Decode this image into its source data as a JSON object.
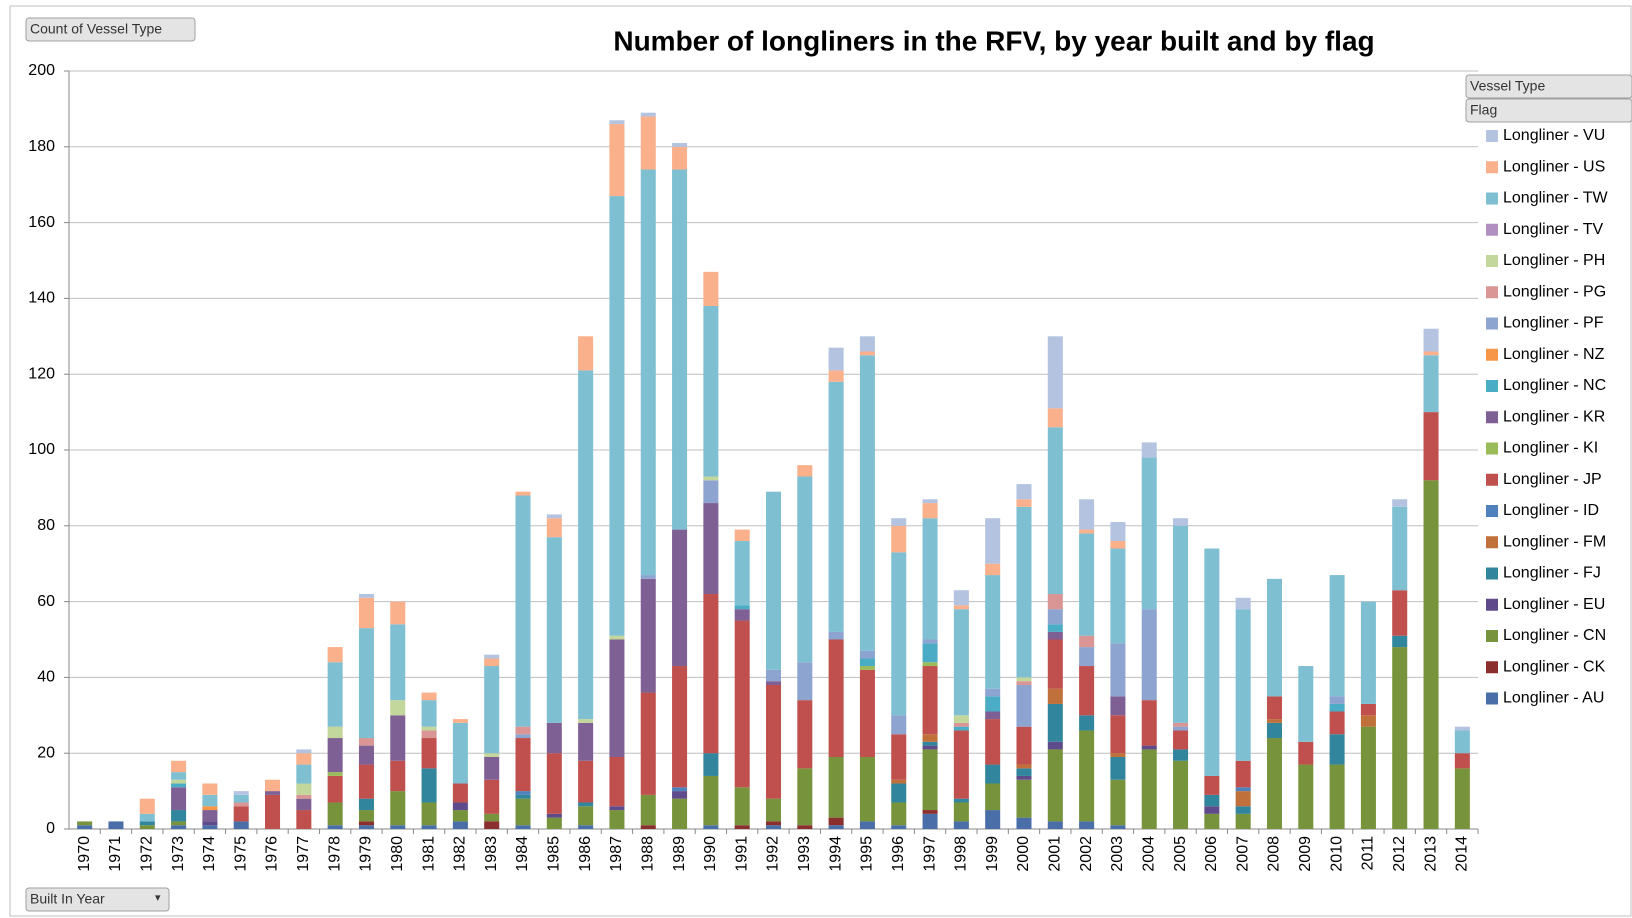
{
  "chart_data": {
    "type": "stacked_bar",
    "title": "Number of longliners in the RFV, by year built and by flag",
    "value_field": "Count of Vessel Type",
    "legend_fields": [
      "Vessel Type",
      "Flag"
    ],
    "axis_field": "Built In Year",
    "grid": true,
    "legend": "right",
    "ylim": [
      0,
      200
    ],
    "yticks": [
      0,
      20,
      40,
      60,
      80,
      100,
      120,
      140,
      160,
      180,
      200
    ],
    "categories": [
      "1970",
      "1971",
      "1972",
      "1973",
      "1974",
      "1975",
      "1976",
      "1977",
      "1978",
      "1979",
      "1980",
      "1981",
      "1982",
      "1983",
      "1984",
      "1985",
      "1986",
      "1987",
      "1988",
      "1989",
      "1990",
      "1991",
      "1992",
      "1993",
      "1994",
      "1995",
      "1996",
      "1997",
      "1998",
      "1999",
      "2000",
      "2001",
      "2002",
      "2003",
      "2004",
      "2005",
      "2006",
      "2007",
      "2008",
      "2009",
      "2010",
      "2011",
      "2012",
      "2013",
      "2014"
    ],
    "series": [
      {
        "name": "Longliner - AU",
        "color": "#4a6fa8",
        "values": [
          1,
          2,
          0,
          1,
          1,
          2,
          0,
          0,
          1,
          1,
          1,
          1,
          2,
          0,
          1,
          0,
          1,
          0,
          0,
          0,
          1,
          0,
          1,
          0,
          1,
          2,
          1,
          4,
          2,
          5,
          3,
          2,
          2,
          1,
          0,
          0,
          0,
          0,
          0,
          0,
          0,
          0,
          0,
          0,
          0
        ]
      },
      {
        "name": "Longliner - CK",
        "color": "#8b2e2e",
        "values": [
          0,
          0,
          0,
          0,
          0,
          0,
          0,
          0,
          0,
          1,
          0,
          0,
          0,
          2,
          0,
          0,
          0,
          0,
          1,
          0,
          0,
          1,
          1,
          1,
          2,
          0,
          0,
          1,
          0,
          0,
          0,
          0,
          0,
          0,
          0,
          0,
          0,
          0,
          0,
          0,
          0,
          0,
          0,
          0,
          0
        ]
      },
      {
        "name": "Longliner - CN",
        "color": "#77933c",
        "values": [
          1,
          0,
          1,
          1,
          0,
          0,
          0,
          0,
          6,
          3,
          9,
          6,
          3,
          2,
          7,
          3,
          5,
          5,
          8,
          8,
          13,
          10,
          6,
          15,
          16,
          17,
          6,
          16,
          5,
          7,
          10,
          19,
          24,
          12,
          21,
          18,
          4,
          4,
          24,
          17,
          17,
          27,
          48,
          92,
          16
        ]
      },
      {
        "name": "Longliner - EU",
        "color": "#5f4b8b",
        "values": [
          0,
          0,
          0,
          0,
          1,
          0,
          0,
          0,
          0,
          0,
          0,
          0,
          2,
          0,
          0,
          1,
          0,
          1,
          0,
          2,
          0,
          0,
          0,
          0,
          0,
          0,
          0,
          1,
          0,
          0,
          1,
          2,
          0,
          0,
          1,
          0,
          2,
          0,
          0,
          0,
          0,
          0,
          0,
          0,
          0
        ]
      },
      {
        "name": "Longliner - FJ",
        "color": "#31859c",
        "values": [
          0,
          0,
          1,
          3,
          0,
          0,
          0,
          0,
          0,
          3,
          0,
          9,
          0,
          0,
          1,
          0,
          1,
          0,
          0,
          0,
          6,
          0,
          0,
          0,
          0,
          0,
          5,
          1,
          1,
          5,
          2,
          10,
          4,
          6,
          0,
          3,
          3,
          2,
          4,
          0,
          8,
          0,
          3,
          0,
          0
        ]
      },
      {
        "name": "Longliner - FM",
        "color": "#c0703a",
        "values": [
          0,
          0,
          0,
          0,
          0,
          0,
          0,
          0,
          0,
          0,
          0,
          0,
          0,
          0,
          0,
          0,
          0,
          0,
          0,
          0,
          0,
          0,
          0,
          0,
          0,
          0,
          1,
          2,
          0,
          0,
          1,
          4,
          0,
          1,
          0,
          0,
          0,
          4,
          1,
          0,
          0,
          3,
          0,
          0,
          0
        ]
      },
      {
        "name": "Longliner - ID",
        "color": "#4f81bd",
        "values": [
          0,
          0,
          0,
          0,
          0,
          0,
          0,
          0,
          0,
          0,
          0,
          0,
          0,
          0,
          1,
          0,
          0,
          0,
          0,
          1,
          0,
          0,
          0,
          0,
          0,
          0,
          0,
          0,
          0,
          0,
          0,
          0,
          0,
          0,
          0,
          0,
          0,
          1,
          0,
          0,
          0,
          0,
          0,
          0,
          0
        ]
      },
      {
        "name": "Longliner - JP",
        "color": "#c0504d",
        "values": [
          0,
          0,
          0,
          0,
          0,
          4,
          9,
          5,
          7,
          9,
          8,
          8,
          5,
          9,
          14,
          16,
          11,
          13,
          27,
          32,
          42,
          44,
          30,
          18,
          31,
          23,
          12,
          18,
          18,
          12,
          10,
          13,
          13,
          10,
          12,
          5,
          5,
          7,
          6,
          6,
          6,
          3,
          12,
          18,
          4
        ]
      },
      {
        "name": "Longliner - KI",
        "color": "#9bbb59",
        "values": [
          0,
          0,
          0,
          0,
          0,
          0,
          0,
          0,
          1,
          0,
          0,
          0,
          0,
          0,
          0,
          0,
          0,
          0,
          0,
          0,
          0,
          0,
          0,
          0,
          0,
          1,
          0,
          1,
          0,
          0,
          0,
          0,
          0,
          0,
          0,
          0,
          0,
          0,
          0,
          0,
          0,
          0,
          0,
          0,
          0
        ]
      },
      {
        "name": "Longliner - KR",
        "color": "#7f6094",
        "values": [
          0,
          0,
          0,
          6,
          3,
          0,
          1,
          3,
          9,
          5,
          12,
          0,
          0,
          6,
          0,
          8,
          10,
          31,
          30,
          36,
          24,
          3,
          1,
          0,
          0,
          0,
          0,
          0,
          0,
          2,
          0,
          2,
          0,
          5,
          0,
          0,
          0,
          0,
          0,
          0,
          0,
          0,
          0,
          0,
          0
        ]
      },
      {
        "name": "Longliner - NC",
        "color": "#4bacc6",
        "values": [
          0,
          0,
          0,
          1,
          0,
          0,
          0,
          0,
          0,
          0,
          0,
          0,
          0,
          0,
          0,
          0,
          0,
          0,
          0,
          0,
          0,
          1,
          0,
          0,
          0,
          2,
          0,
          5,
          1,
          4,
          0,
          2,
          0,
          0,
          0,
          0,
          0,
          0,
          0,
          0,
          2,
          0,
          0,
          0,
          0
        ]
      },
      {
        "name": "Longliner - NZ",
        "color": "#f79646",
        "values": [
          0,
          0,
          0,
          0,
          1,
          0,
          0,
          0,
          0,
          0,
          0,
          0,
          0,
          0,
          0,
          0,
          0,
          0,
          0,
          0,
          0,
          0,
          0,
          0,
          0,
          0,
          0,
          0,
          0,
          0,
          0,
          0,
          0,
          0,
          0,
          0,
          0,
          0,
          0,
          0,
          0,
          0,
          0,
          0,
          0
        ]
      },
      {
        "name": "Longliner - PF",
        "color": "#8da3d0",
        "values": [
          0,
          0,
          0,
          0,
          0,
          0,
          0,
          0,
          0,
          0,
          0,
          0,
          0,
          0,
          1,
          0,
          0,
          0,
          1,
          0,
          6,
          0,
          3,
          10,
          2,
          2,
          5,
          1,
          0,
          2,
          11,
          4,
          5,
          14,
          24,
          1,
          0,
          0,
          0,
          0,
          2,
          0,
          0,
          0,
          0
        ]
      },
      {
        "name": "Longliner - PG",
        "color": "#d99694",
        "values": [
          0,
          0,
          0,
          0,
          0,
          1,
          0,
          1,
          0,
          2,
          0,
          2,
          0,
          0,
          2,
          0,
          0,
          0,
          0,
          0,
          0,
          0,
          0,
          0,
          0,
          0,
          0,
          0,
          1,
          0,
          1,
          4,
          3,
          0,
          0,
          1,
          0,
          0,
          0,
          0,
          0,
          0,
          0,
          0,
          0
        ]
      },
      {
        "name": "Longliner - PH",
        "color": "#c3d69b",
        "values": [
          0,
          0,
          0,
          1,
          0,
          0,
          0,
          3,
          3,
          0,
          4,
          1,
          0,
          1,
          0,
          0,
          1,
          1,
          0,
          0,
          1,
          0,
          0,
          0,
          0,
          0,
          0,
          0,
          2,
          0,
          1,
          0,
          0,
          0,
          0,
          0,
          0,
          0,
          0,
          0,
          0,
          0,
          0,
          0,
          0
        ]
      },
      {
        "name": "Longliner - TV",
        "color": "#b28fc1",
        "values": [
          0,
          0,
          0,
          0,
          0,
          0,
          0,
          0,
          0,
          0,
          0,
          0,
          0,
          0,
          0,
          0,
          0,
          0,
          0,
          0,
          0,
          0,
          0,
          0,
          0,
          0,
          0,
          0,
          0,
          0,
          0,
          0,
          0,
          0,
          0,
          0,
          0,
          0,
          0,
          0,
          0,
          0,
          0,
          0,
          0
        ]
      },
      {
        "name": "Longliner - TW",
        "color": "#7fbfd2",
        "values": [
          0,
          0,
          2,
          2,
          3,
          2,
          0,
          5,
          17,
          29,
          20,
          7,
          16,
          23,
          61,
          49,
          92,
          116,
          107,
          95,
          45,
          17,
          47,
          49,
          66,
          78,
          43,
          32,
          28,
          30,
          45,
          44,
          27,
          25,
          40,
          52,
          60,
          40,
          31,
          20,
          32,
          27,
          22,
          15,
          6
        ]
      },
      {
        "name": "Longliner - US",
        "color": "#fab08a",
        "values": [
          0,
          0,
          4,
          3,
          3,
          0,
          3,
          3,
          4,
          8,
          6,
          2,
          1,
          2,
          1,
          5,
          9,
          19,
          14,
          6,
          9,
          3,
          0,
          3,
          3,
          1,
          7,
          4,
          1,
          3,
          2,
          5,
          1,
          2,
          0,
          0,
          0,
          0,
          0,
          0,
          0,
          0,
          0,
          1,
          0
        ]
      },
      {
        "name": "Longliner - VU",
        "color": "#b3c3e0",
        "values": [
          0,
          0,
          0,
          0,
          0,
          1,
          0,
          1,
          0,
          1,
          0,
          0,
          0,
          1,
          0,
          1,
          0,
          1,
          1,
          1,
          0,
          0,
          0,
          0,
          6,
          4,
          2,
          1,
          4,
          12,
          4,
          19,
          8,
          5,
          4,
          2,
          0,
          3,
          0,
          0,
          0,
          0,
          2,
          6,
          1
        ]
      }
    ]
  }
}
